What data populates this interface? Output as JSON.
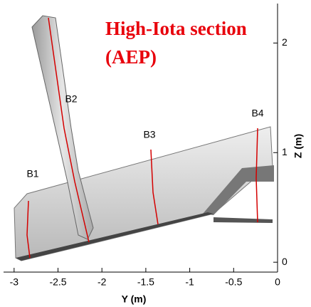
{
  "chart_data": {
    "type": "rendering",
    "title": "High-Iota section (AEP)",
    "x_label": "Y (m)",
    "y_label": "Z (m)",
    "annotations": [
      "B1",
      "B2",
      "B3",
      "B4"
    ],
    "xlim": [
      -3.12,
      0
    ],
    "xticks": [
      -3,
      -2.5,
      -2,
      -1.5,
      -1,
      -0.5,
      0
    ],
    "ylim": [
      -0.09,
      2.36
    ],
    "yticks": [
      0,
      1,
      2
    ]
  }
}
